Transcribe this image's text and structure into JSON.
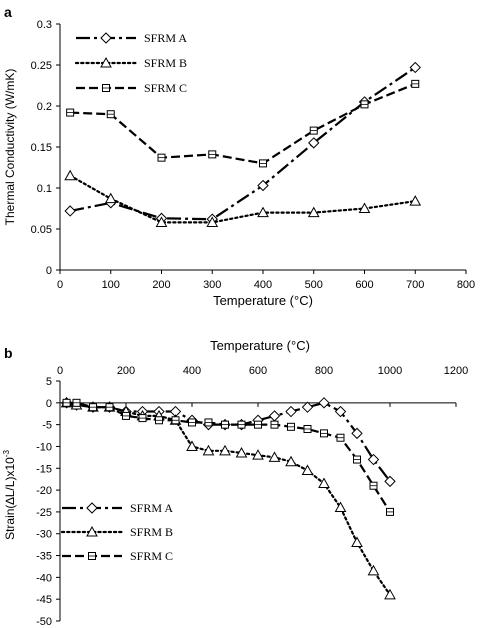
{
  "chart_data": [
    {
      "panel_label": "a",
      "type": "line",
      "xlabel": "Temperature (°C)",
      "ylabel": "Thermal Conductivity (W/mK)",
      "xlim": [
        0,
        800
      ],
      "ylim": [
        0,
        0.3
      ],
      "x_ticks": [
        0,
        100,
        200,
        300,
        400,
        500,
        600,
        700,
        800
      ],
      "y_ticks": [
        0,
        0.05,
        0.1,
        0.15,
        0.2,
        0.25,
        0.3
      ],
      "grid": false,
      "legend_position": "top-left",
      "series": [
        {
          "name": "SFRM A",
          "marker": "diamond",
          "dash": "long-dash-dot",
          "x": [
            20,
            100,
            200,
            300,
            400,
            500,
            600,
            700
          ],
          "y": [
            0.072,
            0.082,
            0.063,
            0.062,
            0.103,
            0.155,
            0.205,
            0.247
          ]
        },
        {
          "name": "SFRM B",
          "marker": "triangle",
          "dash": "dotted",
          "x": [
            20,
            100,
            200,
            300,
            400,
            500,
            600,
            700
          ],
          "y": [
            0.115,
            0.087,
            0.058,
            0.058,
            0.07,
            0.07,
            0.075,
            0.084
          ]
        },
        {
          "name": "SFRM C",
          "marker": "square",
          "dash": "dashed",
          "x": [
            20,
            100,
            200,
            300,
            400,
            500,
            600,
            700
          ],
          "y": [
            0.192,
            0.19,
            0.137,
            0.141,
            0.13,
            0.17,
            0.202,
            0.227
          ]
        }
      ]
    },
    {
      "panel_label": "b",
      "type": "line",
      "xlabel": "Temperature (°C)",
      "ylabel": "Strain(∆L/L)x10",
      "ylabel_exponent": "-3",
      "xlim": [
        0,
        1200
      ],
      "ylim": [
        -50,
        5
      ],
      "x_ticks": [
        0,
        200,
        400,
        600,
        800,
        1000,
        1200
      ],
      "y_ticks": [
        5,
        0,
        -5,
        -10,
        -15,
        -20,
        -25,
        -30,
        -35,
        -40,
        -45,
        -50
      ],
      "x_axis_position": "top",
      "grid": false,
      "legend_position": "bottom-left",
      "series": [
        {
          "name": "SFRM A",
          "marker": "diamond",
          "dash": "long-dash-dot",
          "x": [
            20,
            50,
            100,
            150,
            200,
            250,
            300,
            350,
            400,
            450,
            500,
            550,
            600,
            650,
            700,
            750,
            800,
            850,
            900,
            950,
            1000
          ],
          "y": [
            0,
            -0.5,
            -1,
            -1,
            -2,
            -2,
            -2,
            -2,
            -4,
            -5,
            -5,
            -5,
            -4,
            -3,
            -2,
            -1,
            0,
            -2,
            -7,
            -13,
            -18
          ]
        },
        {
          "name": "SFRM B",
          "marker": "triangle",
          "dash": "dotted",
          "x": [
            20,
            50,
            100,
            150,
            200,
            250,
            300,
            350,
            400,
            450,
            500,
            550,
            600,
            650,
            700,
            750,
            800,
            850,
            900,
            950,
            1000
          ],
          "y": [
            0,
            -0.5,
            -1,
            -1,
            -2,
            -3,
            -3,
            -4,
            -10,
            -11,
            -11,
            -11.5,
            -12,
            -12.5,
            -13.5,
            -15.5,
            -18.5,
            -24,
            -32,
            -38.5,
            -44
          ]
        },
        {
          "name": "SFRM C",
          "marker": "square",
          "dash": "dashed",
          "x": [
            20,
            50,
            100,
            150,
            200,
            250,
            300,
            350,
            400,
            450,
            500,
            550,
            600,
            650,
            700,
            750,
            800,
            850,
            900,
            950,
            1000
          ],
          "y": [
            0,
            0,
            -1,
            -1,
            -3,
            -3.5,
            -4,
            -4,
            -4.5,
            -4.5,
            -5,
            -5,
            -5,
            -5,
            -5.5,
            -6,
            -7,
            -8,
            -13,
            -19,
            -25
          ]
        }
      ]
    }
  ]
}
